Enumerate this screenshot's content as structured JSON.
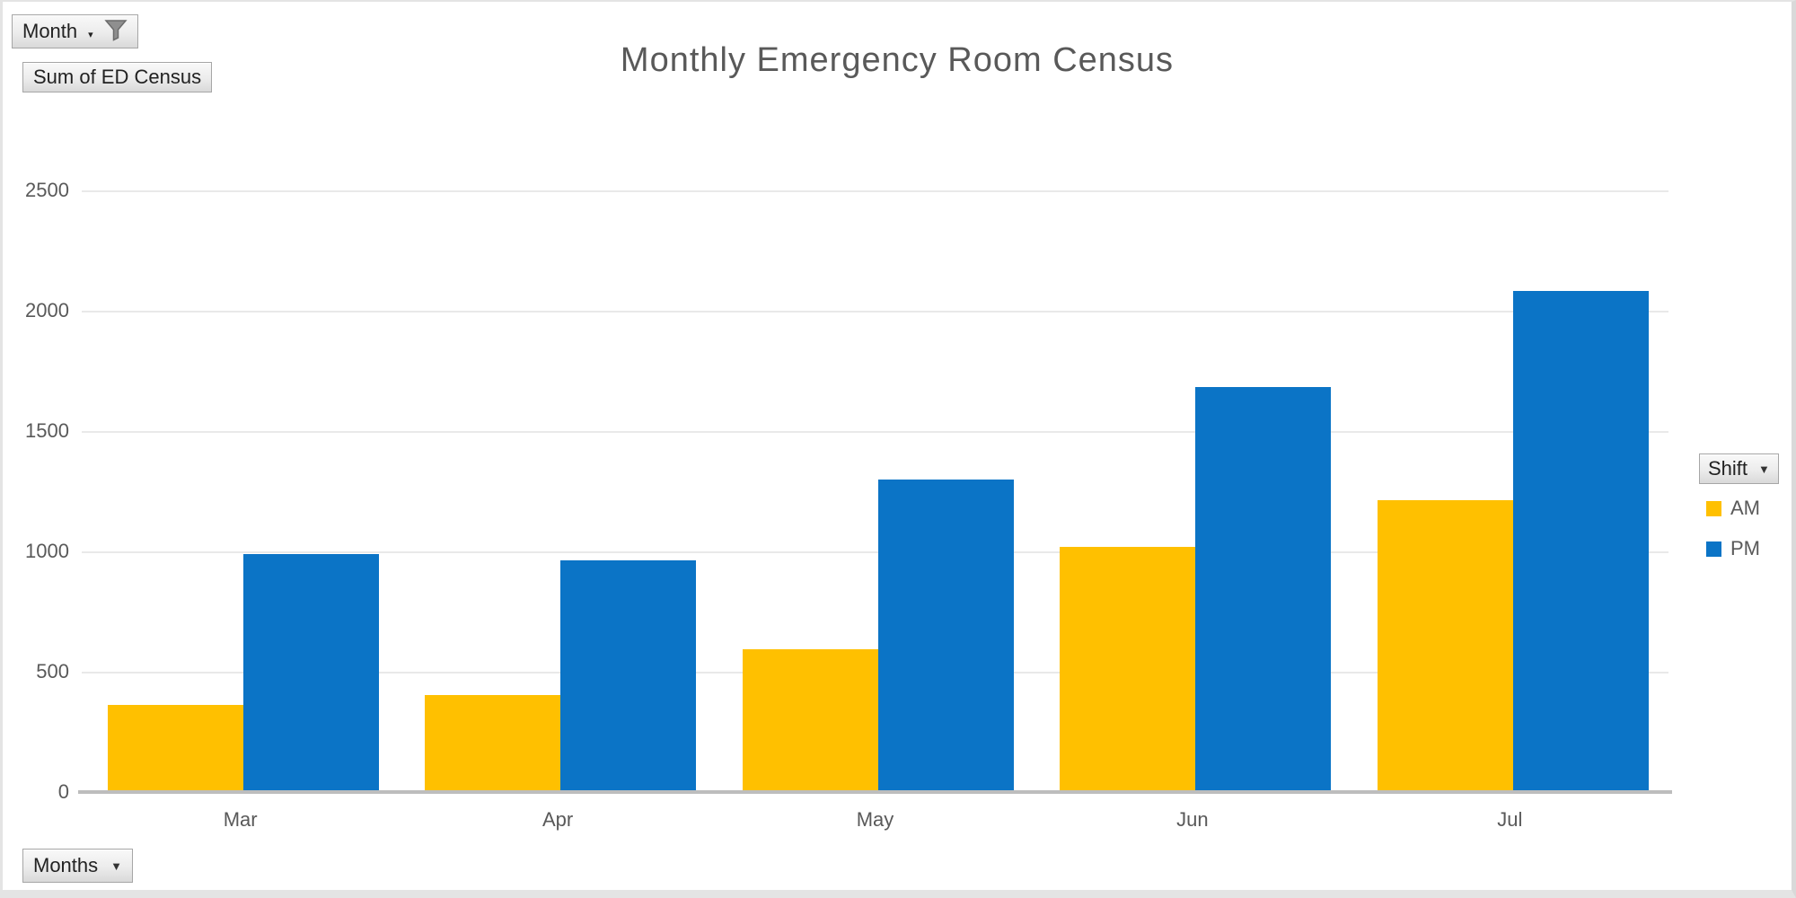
{
  "chart_data": {
    "type": "bar",
    "title": "Monthly Emergency Room Census",
    "categories": [
      "Mar",
      "Apr",
      "May",
      "Jun",
      "Jul"
    ],
    "series": [
      {
        "name": "AM",
        "color": "#FFC000",
        "values": [
          355,
          395,
          585,
          1010,
          1205
        ]
      },
      {
        "name": "PM",
        "color": "#0B74C6",
        "values": [
          980,
          955,
          1290,
          1675,
          2075
        ]
      }
    ],
    "xlabel": "",
    "ylabel": "",
    "ylim": [
      0,
      2500
    ],
    "yticks": [
      0,
      500,
      1000,
      1500,
      2000,
      2500
    ],
    "grid": true,
    "legend_position": "right"
  },
  "pivot_buttons": {
    "report_filter": {
      "label": "Month",
      "icon": "filter-funnel-icon",
      "dropdown_glyph": "▾"
    },
    "value_field": {
      "label": "Sum of ED Census"
    },
    "legend_field": {
      "label": "Shift",
      "dropdown_glyph": "▼"
    },
    "axis_field": {
      "label": "Months",
      "dropdown_glyph": "▼"
    }
  },
  "colors": {
    "am": "#FFC000",
    "pm": "#0B74C6",
    "title_text": "#595959",
    "axis_text": "#595959",
    "gridline": "#E9E9E9",
    "axis_line": "#BDBDBD"
  }
}
